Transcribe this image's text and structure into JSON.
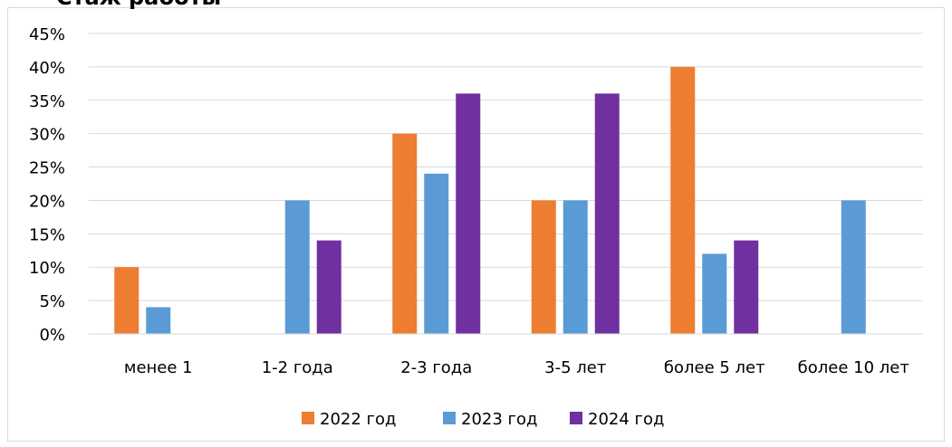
{
  "chart_data": {
    "type": "bar",
    "title": "Стаж работы",
    "categories": [
      "менее 1",
      "1-2 года",
      "2-3 года",
      "3-5 лет",
      "более 5 лет",
      "более 10 лет"
    ],
    "series": [
      {
        "name": "2022 год",
        "color": "#ED7D31",
        "values": [
          0.1,
          0,
          0.3,
          0.2,
          0.4,
          0
        ]
      },
      {
        "name": "2023 год",
        "color": "#5B9BD5",
        "values": [
          0.04,
          0.2,
          0.24,
          0.2,
          0.12,
          0.2
        ]
      },
      {
        "name": "2024 год",
        "color": "#7030A0",
        "values": [
          0,
          0.14,
          0.36,
          0.36,
          0.14,
          0
        ]
      }
    ],
    "ylim": [
      0,
      0.45
    ],
    "yticks": [
      "0%",
      "5%",
      "10%",
      "15%",
      "20%",
      "25%",
      "30%",
      "35%",
      "40%",
      "45%"
    ],
    "grid": true,
    "legend_position": "bottom"
  }
}
